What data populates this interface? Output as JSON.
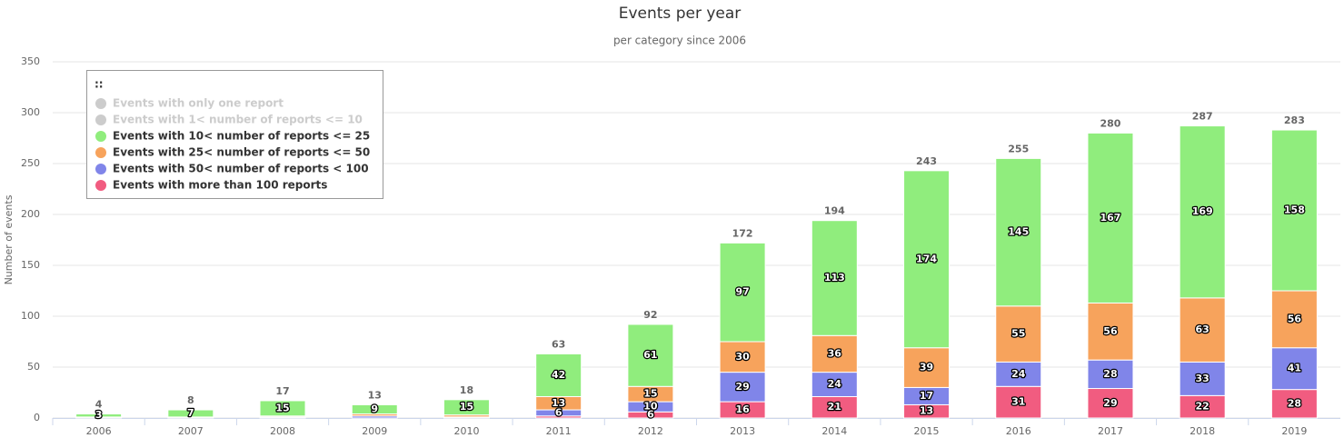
{
  "chart_data": {
    "type": "stacked_bar",
    "title": "Events per year",
    "subtitle": "per category since 2006",
    "y_label": "Number of events",
    "legend_title": "::",
    "legend": "top-left",
    "grid": true,
    "categories": [
      "2006",
      "2007",
      "2008",
      "2009",
      "2010",
      "2011",
      "2012",
      "2013",
      "2014",
      "2015",
      "2016",
      "2017",
      "2018",
      "2019"
    ],
    "ylim": [
      0,
      350
    ],
    "yticks": [
      0,
      50,
      100,
      150,
      200,
      250,
      300,
      350
    ],
    "hidden_color": "#cccccc",
    "series": [
      {
        "name": "Events with only one report",
        "color": "#7cb5ec",
        "visible": false
      },
      {
        "name": "Events with 1< number of reports <= 10",
        "color": "#434348",
        "visible": false
      },
      {
        "name": "Events with 10< number of reports <= 25",
        "color": "#90ed7d",
        "visible": true,
        "values": [
          3,
          7,
          15,
          9,
          15,
          42,
          61,
          97,
          113,
          174,
          145,
          167,
          169,
          158
        ]
      },
      {
        "name": "Events with 25< number of reports <= 50",
        "color": "#f7a35c",
        "visible": true,
        "values": [
          1,
          1,
          1,
          2,
          2,
          13,
          15,
          30,
          36,
          39,
          55,
          56,
          63,
          56
        ]
      },
      {
        "name": "Events with 50< number of reports < 100",
        "color": "#8085e9",
        "visible": true,
        "values": [
          0,
          0,
          1,
          2,
          1,
          6,
          10,
          29,
          24,
          17,
          24,
          28,
          33,
          41
        ]
      },
      {
        "name": "Events with more than 100 reports",
        "color": "#f15c80",
        "visible": true,
        "values": [
          0,
          0,
          0,
          0,
          0,
          2,
          6,
          16,
          21,
          13,
          31,
          29,
          22,
          28
        ]
      }
    ],
    "totals": [
      4,
      8,
      17,
      13,
      18,
      63,
      92,
      172,
      194,
      243,
      255,
      280,
      287,
      283
    ]
  }
}
